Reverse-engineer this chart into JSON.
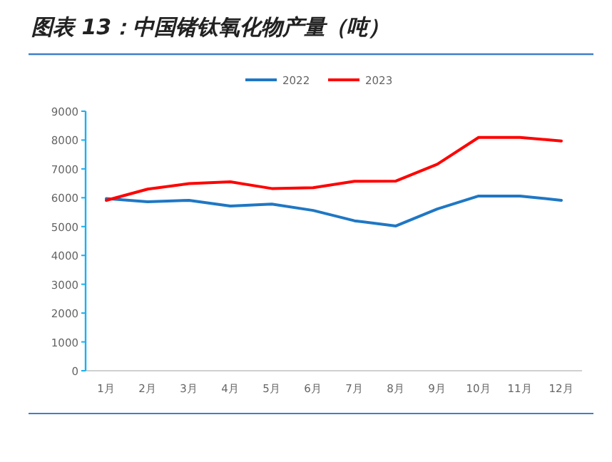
{
  "chart_data": {
    "type": "line",
    "title": "图表 13：中国锗钛氧化物产量（吨）",
    "categories": [
      "1月",
      "2月",
      "3月",
      "4月",
      "5月",
      "6月",
      "7月",
      "8月",
      "9月",
      "10月",
      "11月",
      "12月"
    ],
    "series": [
      {
        "name": "2022",
        "color": "#1f77c4",
        "values": [
          5970,
          5860,
          5910,
          5710,
          5780,
          5560,
          5200,
          5020,
          5610,
          6060,
          6060,
          5910
        ]
      },
      {
        "name": "2023",
        "color": "#ff0000",
        "values": [
          5910,
          6300,
          6490,
          6550,
          6320,
          6350,
          6570,
          6580,
          7160,
          8090,
          8090,
          7970
        ]
      }
    ],
    "ylim": [
      0,
      9000
    ],
    "yticks": [
      0,
      1000,
      2000,
      3000,
      4000,
      5000,
      6000,
      7000,
      8000,
      9000
    ],
    "grid": false,
    "legend": "top",
    "marker": "none",
    "line_style": "solid"
  }
}
